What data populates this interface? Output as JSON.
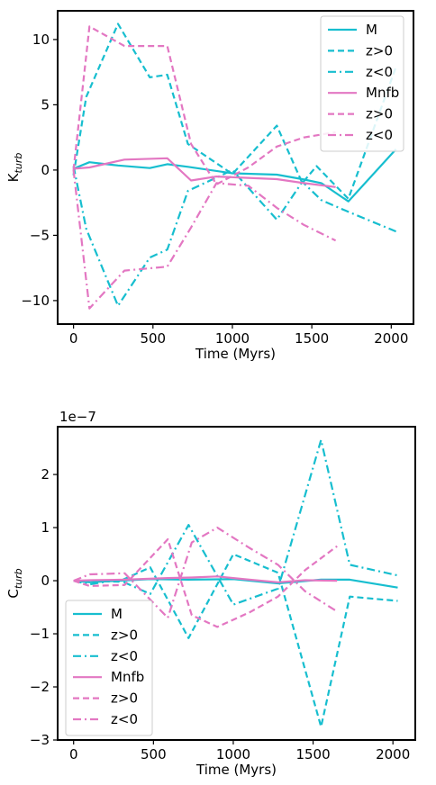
{
  "colors": {
    "M": "#17becf",
    "Mnfb": "#e377c2"
  },
  "chart_data": [
    {
      "type": "line",
      "xlabel": "Time (Myrs)",
      "ylabel_main": "K",
      "ylabel_sub": "turb",
      "xlim": [
        -100,
        2140
      ],
      "ylim": [
        -11.8,
        12.2
      ],
      "xticks": [
        0,
        500,
        1000,
        1500,
        2000
      ],
      "yticks": [
        -10,
        -5,
        0,
        5,
        10
      ],
      "ytick_labels": [
        "−10",
        "−5",
        "0",
        "5",
        "10"
      ],
      "legend_position": "top-right",
      "series": [
        {
          "name": "M",
          "color": "#17becf",
          "style": "solid",
          "x": [
            0,
            100,
            280,
            480,
            590,
            720,
            1000,
            1280,
            1440,
            1560,
            1730,
            2030
          ],
          "y": [
            0.1,
            0.6,
            0.35,
            0.15,
            0.45,
            0.25,
            -0.25,
            -0.35,
            -0.7,
            -1.0,
            -2.4,
            1.6
          ]
        },
        {
          "name": "z>0",
          "color": "#17becf",
          "style": "dashed",
          "x": [
            0,
            80,
            280,
            480,
            590,
            720,
            1000,
            1280,
            1440,
            1530,
            1730,
            2030
          ],
          "y": [
            -0.4,
            5.6,
            11.2,
            7.1,
            7.3,
            2.0,
            -0.3,
            3.4,
            -1.0,
            0.3,
            -2.2,
            7.9
          ]
        },
        {
          "name": "z<0",
          "color": "#17becf",
          "style": "dashdot",
          "x": [
            0,
            80,
            280,
            480,
            590,
            720,
            1000,
            1280,
            1440,
            1560,
            1730,
            2030
          ],
          "y": [
            0.3,
            -4.5,
            -10.4,
            -6.7,
            -6.1,
            -1.6,
            0.0,
            -3.8,
            -0.9,
            -2.3,
            -3.2,
            -4.7
          ]
        },
        {
          "name": "Mnfb",
          "color": "#e377c2",
          "style": "solid",
          "x": [
            0,
            100,
            320,
            590,
            740,
            900,
            1100,
            1280,
            1450,
            1650
          ],
          "y": [
            0.1,
            0.2,
            0.8,
            0.9,
            -0.8,
            -0.5,
            -0.6,
            -0.7,
            -1.0,
            -1.3
          ]
        },
        {
          "name": "z>0",
          "color": "#e377c2",
          "style": "dashed",
          "x": [
            0,
            100,
            320,
            590,
            740,
            900,
            1100,
            1280,
            1450,
            1650
          ],
          "y": [
            0.0,
            11.0,
            9.5,
            9.5,
            2.0,
            -1.1,
            0.2,
            1.8,
            2.5,
            2.9
          ]
        },
        {
          "name": "z<0",
          "color": "#e377c2",
          "style": "dashdot",
          "x": [
            0,
            100,
            320,
            590,
            740,
            900,
            1100,
            1280,
            1450,
            1650
          ],
          "y": [
            0.0,
            -10.6,
            -7.7,
            -7.4,
            -4.4,
            -1.0,
            -1.2,
            -2.9,
            -4.2,
            -5.4
          ]
        }
      ]
    },
    {
      "type": "line",
      "xlabel": "Time (Myrs)",
      "ylabel_main": "C",
      "ylabel_sub": "turb",
      "offset_text": "1e−7",
      "xlim": [
        -100,
        2140
      ],
      "ylim": [
        -3.0,
        2.9
      ],
      "xticks": [
        0,
        500,
        1000,
        1500,
        2000
      ],
      "yticks": [
        -3,
        -2,
        -1,
        0,
        1,
        2
      ],
      "ytick_labels": [
        "−3",
        "−2",
        "−1",
        "0",
        "1",
        "2"
      ],
      "legend_position": "bottom-left",
      "series": [
        {
          "name": "M",
          "color": "#17becf",
          "style": "solid",
          "x": [
            0,
            100,
            280,
            480,
            720,
            1000,
            1280,
            1550,
            1730,
            2030
          ],
          "y": [
            0.0,
            -0.03,
            0.0,
            0.03,
            0.02,
            0.03,
            -0.05,
            0.02,
            0.02,
            -0.13
          ]
        },
        {
          "name": "z>0",
          "color": "#17becf",
          "style": "dashed",
          "x": [
            0,
            100,
            280,
            480,
            720,
            1000,
            1280,
            1550,
            1730,
            2030
          ],
          "y": [
            0.0,
            0.0,
            -0.02,
            0.25,
            -1.08,
            0.5,
            0.15,
            -2.75,
            -0.3,
            -0.38
          ]
        },
        {
          "name": "z<0",
          "color": "#17becf",
          "style": "dashdot",
          "x": [
            0,
            100,
            280,
            480,
            720,
            1000,
            1280,
            1550,
            1730,
            2030
          ],
          "y": [
            0.0,
            -0.07,
            0.02,
            -0.25,
            1.05,
            -0.45,
            -0.15,
            2.65,
            0.3,
            0.1
          ]
        },
        {
          "name": "Mnfb",
          "color": "#e377c2",
          "style": "solid",
          "x": [
            0,
            100,
            320,
            590,
            740,
            900,
            1100,
            1280,
            1450,
            1650
          ],
          "y": [
            0.0,
            0.01,
            0.02,
            0.05,
            0.06,
            0.08,
            0.02,
            -0.03,
            0.01,
            0.0
          ]
        },
        {
          "name": "z>0",
          "color": "#e377c2",
          "style": "dashed",
          "x": [
            0,
            100,
            320,
            590,
            740,
            900,
            1100,
            1280,
            1450,
            1650
          ],
          "y": [
            0.0,
            -0.1,
            -0.08,
            0.78,
            -0.65,
            -0.87,
            -0.6,
            -0.3,
            0.2,
            0.65
          ]
        },
        {
          "name": "z<0",
          "color": "#e377c2",
          "style": "dashdot",
          "x": [
            0,
            100,
            320,
            590,
            740,
            900,
            1100,
            1280,
            1450,
            1650
          ],
          "y": [
            0.0,
            0.12,
            0.14,
            -0.7,
            0.72,
            1.0,
            0.62,
            0.3,
            -0.2,
            -0.58
          ]
        }
      ]
    }
  ]
}
